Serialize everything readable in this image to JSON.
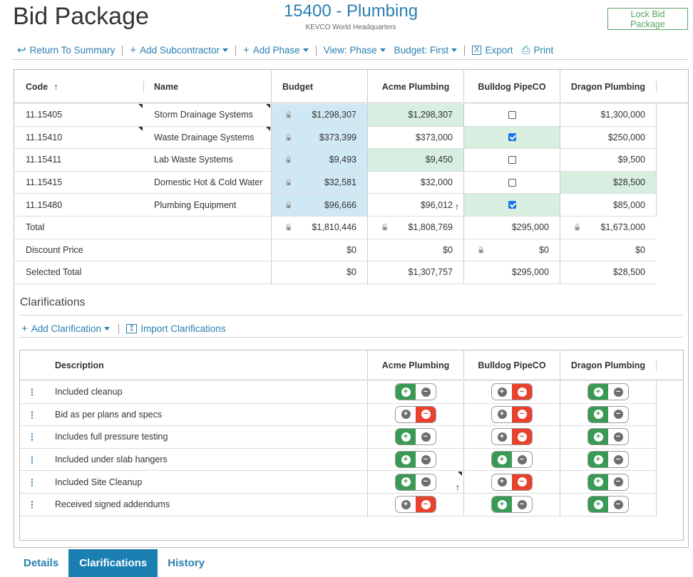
{
  "header": {
    "title": "Bid Package",
    "project": "15400 - Plumbing",
    "subtitle": "KEVCO World Headquarters",
    "lock_button": "Lock Bid Package"
  },
  "toolbar": {
    "return": "Return To Summary",
    "add_sub": "Add Subcontractor",
    "add_phase": "Add Phase",
    "view": "View: Phase",
    "budget": "Budget: First",
    "export": "Export",
    "print": "Print"
  },
  "bid_grid": {
    "headers": {
      "code": "Code",
      "code_sort": "↑",
      "name": "Name",
      "budget": "Budget",
      "acme": "Acme Plumbing",
      "bulldog": "Bulldog PipeCO",
      "dragon": "Dragon Plumbing"
    },
    "rows": [
      {
        "code": "11.15405",
        "name": "Storm Drainage Systems",
        "budget": "$1,298,307",
        "acme": "$1,298,307",
        "bulldog_checked": false,
        "dragon": "$1,300,000"
      },
      {
        "code": "11.15410",
        "name": "Waste Drainage Systems",
        "budget": "$373,399",
        "acme": "$373,000",
        "bulldog_checked": true,
        "dragon": "$250,000"
      },
      {
        "code": "11.15411",
        "name": "Lab Waste Systems",
        "budget": "$9,493",
        "acme": "$9,450",
        "bulldog_checked": false,
        "dragon": "$9,500"
      },
      {
        "code": "11.15415",
        "name": "Domestic Hot & Cold Water",
        "budget": "$32,581",
        "acme": "$32,000",
        "bulldog_checked": false,
        "dragon": "$28,500"
      },
      {
        "code": "11.15480",
        "name": "Plumbing Equipment",
        "budget": "$96,666",
        "acme": "$96,012",
        "bulldog_checked": true,
        "dragon": "$85,000"
      }
    ],
    "total": {
      "label": "Total",
      "budget": "$1,810,446",
      "acme": "$1,808,769",
      "bulldog": "$295,000",
      "dragon": "$1,673,000"
    },
    "discount": {
      "label": "Discount Price",
      "budget": "$0",
      "acme": "$0",
      "bulldog": "$0",
      "dragon": "$0"
    },
    "selected": {
      "label": "Selected Total",
      "budget": "$0",
      "acme": "$1,307,757",
      "bulldog": "$295,000",
      "dragon": "$28,500"
    }
  },
  "clarifications": {
    "title": "Clarifications",
    "add": "Add Clarification",
    "import": "Import Clarifications",
    "headers": {
      "description": "Description",
      "acme": "Acme Plumbing",
      "bulldog": "Bulldog PipeCO",
      "dragon": "Dragon Plumbing"
    },
    "rows": [
      {
        "desc": "Included cleanup",
        "acme": "plus",
        "bulldog": "minus",
        "dragon": "plus"
      },
      {
        "desc": "Bid as per plans and specs",
        "acme": "minus",
        "bulldog": "minus",
        "dragon": "plus"
      },
      {
        "desc": "Includes full pressure testing",
        "acme": "plus",
        "bulldog": "minus",
        "dragon": "plus"
      },
      {
        "desc": "Included under slab hangers",
        "acme": "plus",
        "bulldog": "plus",
        "dragon": "plus"
      },
      {
        "desc": "Included Site Cleanup",
        "acme": "plus",
        "bulldog": "minus",
        "dragon": "plus"
      },
      {
        "desc": "Received signed addendums",
        "acme": "minus",
        "bulldog": "plus",
        "dragon": "plus"
      }
    ]
  },
  "tabs": [
    {
      "label": "Details",
      "active": false
    },
    {
      "label": "Clarifications",
      "active": true
    },
    {
      "label": "History",
      "active": false
    }
  ],
  "colors": {
    "accent": "#2a7fb0",
    "budget_bg": "#cfe8f3",
    "selected_bg": "#d7eee0",
    "include": "#3a9a55",
    "exclude": "#e8412e"
  }
}
